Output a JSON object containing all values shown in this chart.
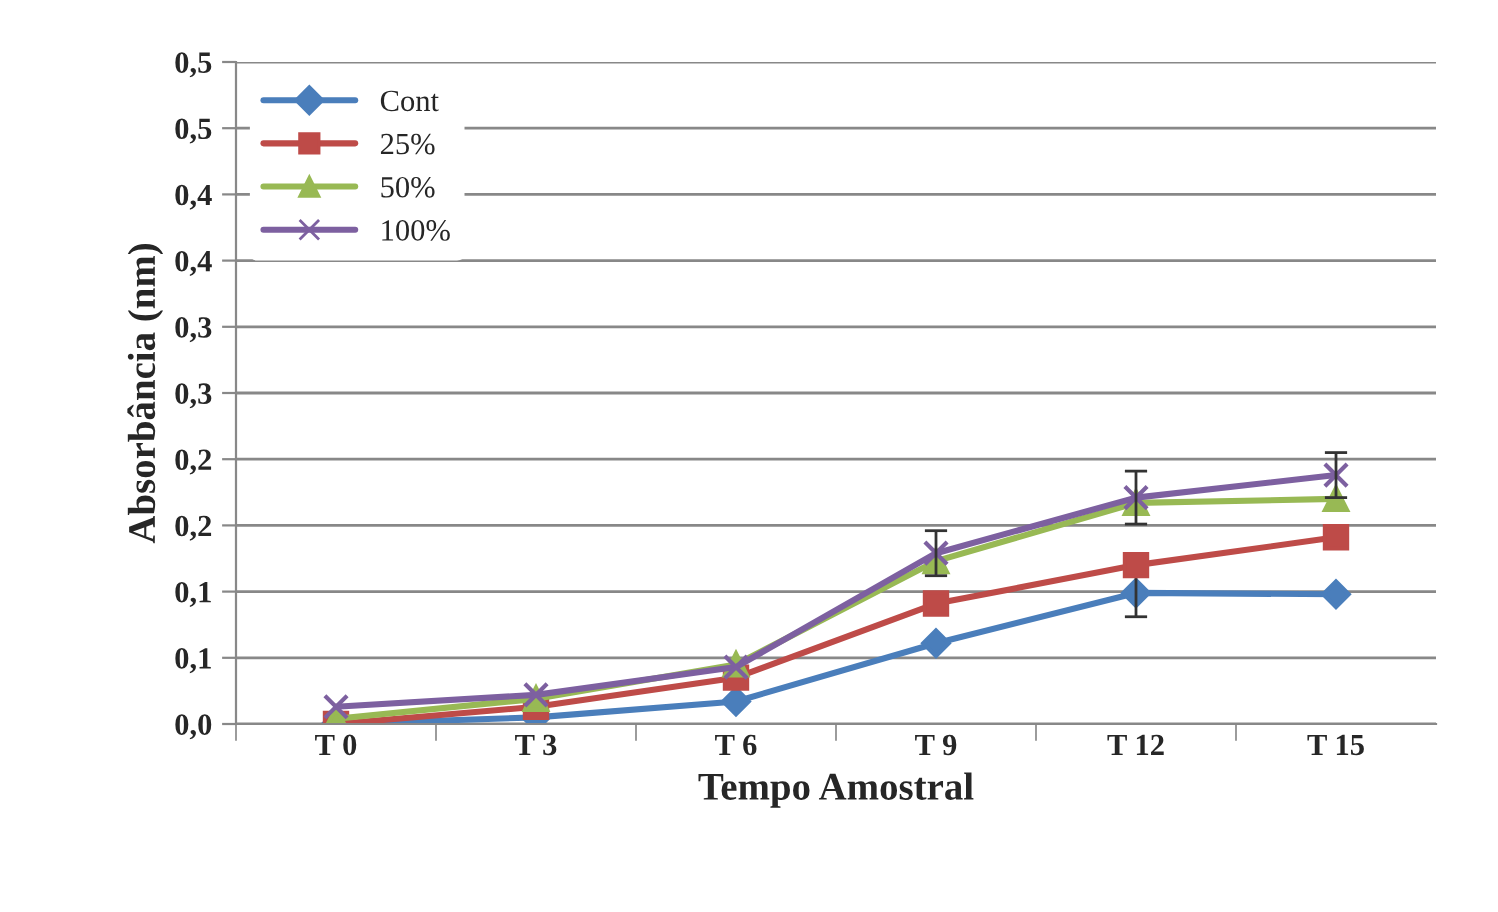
{
  "chart_data": {
    "type": "line",
    "xlabel": "Tempo Amostral",
    "ylabel": "Absorbância (nm)",
    "categories": [
      "T 0",
      "T 3",
      "T 6",
      "T 9",
      "T 12",
      "T 15"
    ],
    "series": [
      {
        "name": "Cont",
        "color": "#4a7ebb",
        "marker": "diamond",
        "values": [
          0.0,
          0.005,
          0.017,
          0.061,
          0.099,
          0.098
        ],
        "errors": [
          null,
          null,
          null,
          null,
          0.018,
          null
        ]
      },
      {
        "name": "25%",
        "color": "#be4b48",
        "marker": "square",
        "values": [
          0.0,
          0.013,
          0.035,
          0.091,
          0.12,
          0.141
        ]
      },
      {
        "name": "50%",
        "color": "#98b954",
        "marker": "triangle",
        "values": [
          0.004,
          0.019,
          0.045,
          0.123,
          0.167,
          0.17
        ]
      },
      {
        "name": "100%",
        "color": "#7d60a0",
        "marker": "cross",
        "values": [
          0.013,
          0.022,
          0.043,
          0.129,
          0.171,
          0.188
        ],
        "errors": [
          null,
          null,
          null,
          0.017,
          0.02,
          0.017
        ]
      }
    ],
    "ylim": [
      0,
      0.5
    ],
    "yticks": [
      {
        "value": 0,
        "label": "0,0"
      },
      {
        "value": 0.05,
        "label": "0,1"
      },
      {
        "value": 0.1,
        "label": "0,1"
      },
      {
        "value": 0.15,
        "label": "0,2"
      },
      {
        "value": 0.2,
        "label": "0,2"
      },
      {
        "value": 0.25,
        "label": "0,3"
      },
      {
        "value": 0.3,
        "label": "0,3"
      },
      {
        "value": 0.35,
        "label": "0,4"
      },
      {
        "value": 0.4,
        "label": "0,4"
      },
      {
        "value": 0.45,
        "label": "0,5"
      },
      {
        "value": 0.5,
        "label": "0,5"
      }
    ],
    "grid": "y",
    "legend": "top left",
    "line_style": "solid"
  }
}
